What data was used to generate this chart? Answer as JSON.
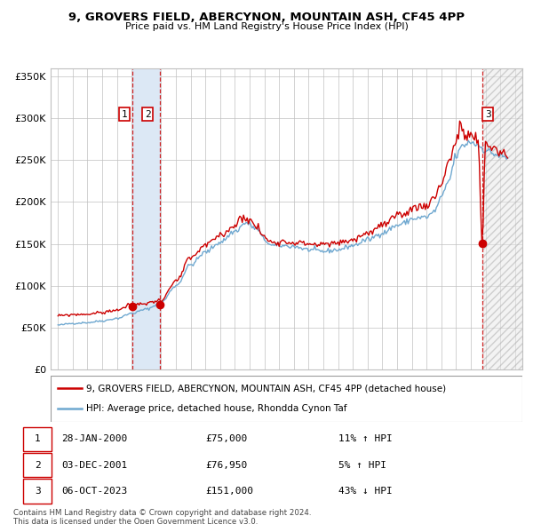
{
  "title": "9, GROVERS FIELD, ABERCYNON, MOUNTAIN ASH, CF45 4PP",
  "subtitle": "Price paid vs. HM Land Registry's House Price Index (HPI)",
  "legend_line1": "9, GROVERS FIELD, ABERCYNON, MOUNTAIN ASH, CF45 4PP (detached house)",
  "legend_line2": "HPI: Average price, detached house, Rhondda Cynon Taf",
  "footer1": "Contains HM Land Registry data © Crown copyright and database right 2024.",
  "footer2": "This data is licensed under the Open Government Licence v3.0.",
  "transactions": [
    {
      "num": 1,
      "date": "28-JAN-2000",
      "price": 75000,
      "pct": "11%",
      "dir": "↑"
    },
    {
      "num": 2,
      "date": "03-DEC-2001",
      "price": 76950,
      "pct": "5%",
      "dir": "↑"
    },
    {
      "num": 3,
      "date": "06-OCT-2023",
      "price": 151000,
      "pct": "43%",
      "dir": "↓"
    }
  ],
  "sale_dates_decimal": [
    2000.07,
    2001.92,
    2023.77
  ],
  "sale_prices": [
    75000,
    76950,
    151000
  ],
  "hpi_color": "#6fa8d0",
  "price_color": "#cc0000",
  "dot_color": "#cc0000",
  "grid_color": "#c0c0c0",
  "shade_color": "#dce8f5",
  "ylim": [
    0,
    360000
  ],
  "yticks": [
    0,
    50000,
    100000,
    150000,
    200000,
    250000,
    300000,
    350000
  ],
  "xlim_start": 1994.5,
  "xlim_end": 2026.5,
  "xticks": [
    1995,
    1996,
    1997,
    1998,
    1999,
    2000,
    2001,
    2002,
    2003,
    2004,
    2005,
    2006,
    2007,
    2008,
    2009,
    2010,
    2011,
    2012,
    2013,
    2014,
    2015,
    2016,
    2017,
    2018,
    2019,
    2020,
    2021,
    2022,
    2023,
    2024,
    2025,
    2026
  ],
  "hpi_waypoints": [
    [
      1995.0,
      53000
    ],
    [
      1996.0,
      55000
    ],
    [
      1997.0,
      56000
    ],
    [
      1998.0,
      58000
    ],
    [
      1999.0,
      61000
    ],
    [
      2000.0,
      67000
    ],
    [
      2001.0,
      72000
    ],
    [
      2002.0,
      80000
    ],
    [
      2003.0,
      100000
    ],
    [
      2004.0,
      125000
    ],
    [
      2005.0,
      140000
    ],
    [
      2006.0,
      152000
    ],
    [
      2007.0,
      165000
    ],
    [
      2007.75,
      175000
    ],
    [
      2008.5,
      168000
    ],
    [
      2009.0,
      155000
    ],
    [
      2009.5,
      148000
    ],
    [
      2010.0,
      148000
    ],
    [
      2011.0,
      147000
    ],
    [
      2012.0,
      143000
    ],
    [
      2013.0,
      141000
    ],
    [
      2014.0,
      143000
    ],
    [
      2015.0,
      148000
    ],
    [
      2016.0,
      155000
    ],
    [
      2017.0,
      163000
    ],
    [
      2018.0,
      172000
    ],
    [
      2018.5,
      175000
    ],
    [
      2019.0,
      180000
    ],
    [
      2020.0,
      182000
    ],
    [
      2020.5,
      188000
    ],
    [
      2021.0,
      205000
    ],
    [
      2021.5,
      225000
    ],
    [
      2022.0,
      255000
    ],
    [
      2022.5,
      268000
    ],
    [
      2023.0,
      272000
    ],
    [
      2023.5,
      268000
    ],
    [
      2024.0,
      262000
    ],
    [
      2024.5,
      258000
    ],
    [
      2025.0,
      255000
    ],
    [
      2025.5,
      252000
    ]
  ],
  "price_waypoints": [
    [
      1995.0,
      64000
    ],
    [
      1996.0,
      65500
    ],
    [
      1997.0,
      66000
    ],
    [
      1998.0,
      68000
    ],
    [
      1999.0,
      71000
    ],
    [
      2000.0,
      77000
    ],
    [
      2001.0,
      79000
    ],
    [
      2002.0,
      83000
    ],
    [
      2003.0,
      105000
    ],
    [
      2004.0,
      133000
    ],
    [
      2005.0,
      148000
    ],
    [
      2006.0,
      160000
    ],
    [
      2007.0,
      172000
    ],
    [
      2007.5,
      183000
    ],
    [
      2008.0,
      178000
    ],
    [
      2008.5,
      170000
    ],
    [
      2009.0,
      158000
    ],
    [
      2009.5,
      152000
    ],
    [
      2010.0,
      153000
    ],
    [
      2011.0,
      152000
    ],
    [
      2012.0,
      150000
    ],
    [
      2013.0,
      149000
    ],
    [
      2014.0,
      151000
    ],
    [
      2015.0,
      155000
    ],
    [
      2016.0,
      163000
    ],
    [
      2017.0,
      172000
    ],
    [
      2018.0,
      182000
    ],
    [
      2018.5,
      185000
    ],
    [
      2019.0,
      193000
    ],
    [
      2020.0,
      196000
    ],
    [
      2020.5,
      205000
    ],
    [
      2021.0,
      222000
    ],
    [
      2021.5,
      248000
    ],
    [
      2022.0,
      272000
    ],
    [
      2022.3,
      290000
    ],
    [
      2022.6,
      278000
    ],
    [
      2023.0,
      280000
    ],
    [
      2023.5,
      272000
    ],
    [
      2023.77,
      151000
    ],
    [
      2024.0,
      270000
    ],
    [
      2024.5,
      265000
    ],
    [
      2025.0,
      260000
    ],
    [
      2025.5,
      255000
    ]
  ]
}
